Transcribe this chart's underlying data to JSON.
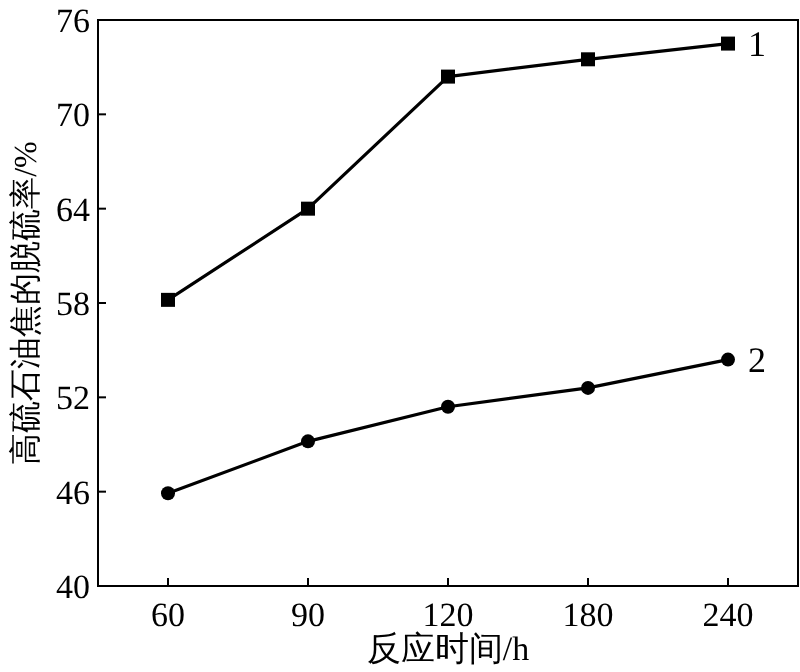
{
  "chart_data": {
    "type": "line",
    "xlabel": "反应时间/h",
    "ylabel": "高硫石油焦的脱硫率/%",
    "categories": [
      "60",
      "90",
      "120",
      "180",
      "240"
    ],
    "series": [
      {
        "name": "1",
        "color": "#000000",
        "marker": "square",
        "values": [
          58.2,
          64.0,
          72.4,
          73.5,
          74.5
        ]
      },
      {
        "name": "2",
        "color": "#000000",
        "marker": "circle",
        "values": [
          45.9,
          49.2,
          51.4,
          52.6,
          54.4
        ]
      }
    ],
    "ylim": [
      40,
      76
    ],
    "yticks": [
      40,
      46,
      52,
      58,
      64,
      70,
      76
    ],
    "grid": false,
    "legend": false,
    "line_style": "solid"
  }
}
